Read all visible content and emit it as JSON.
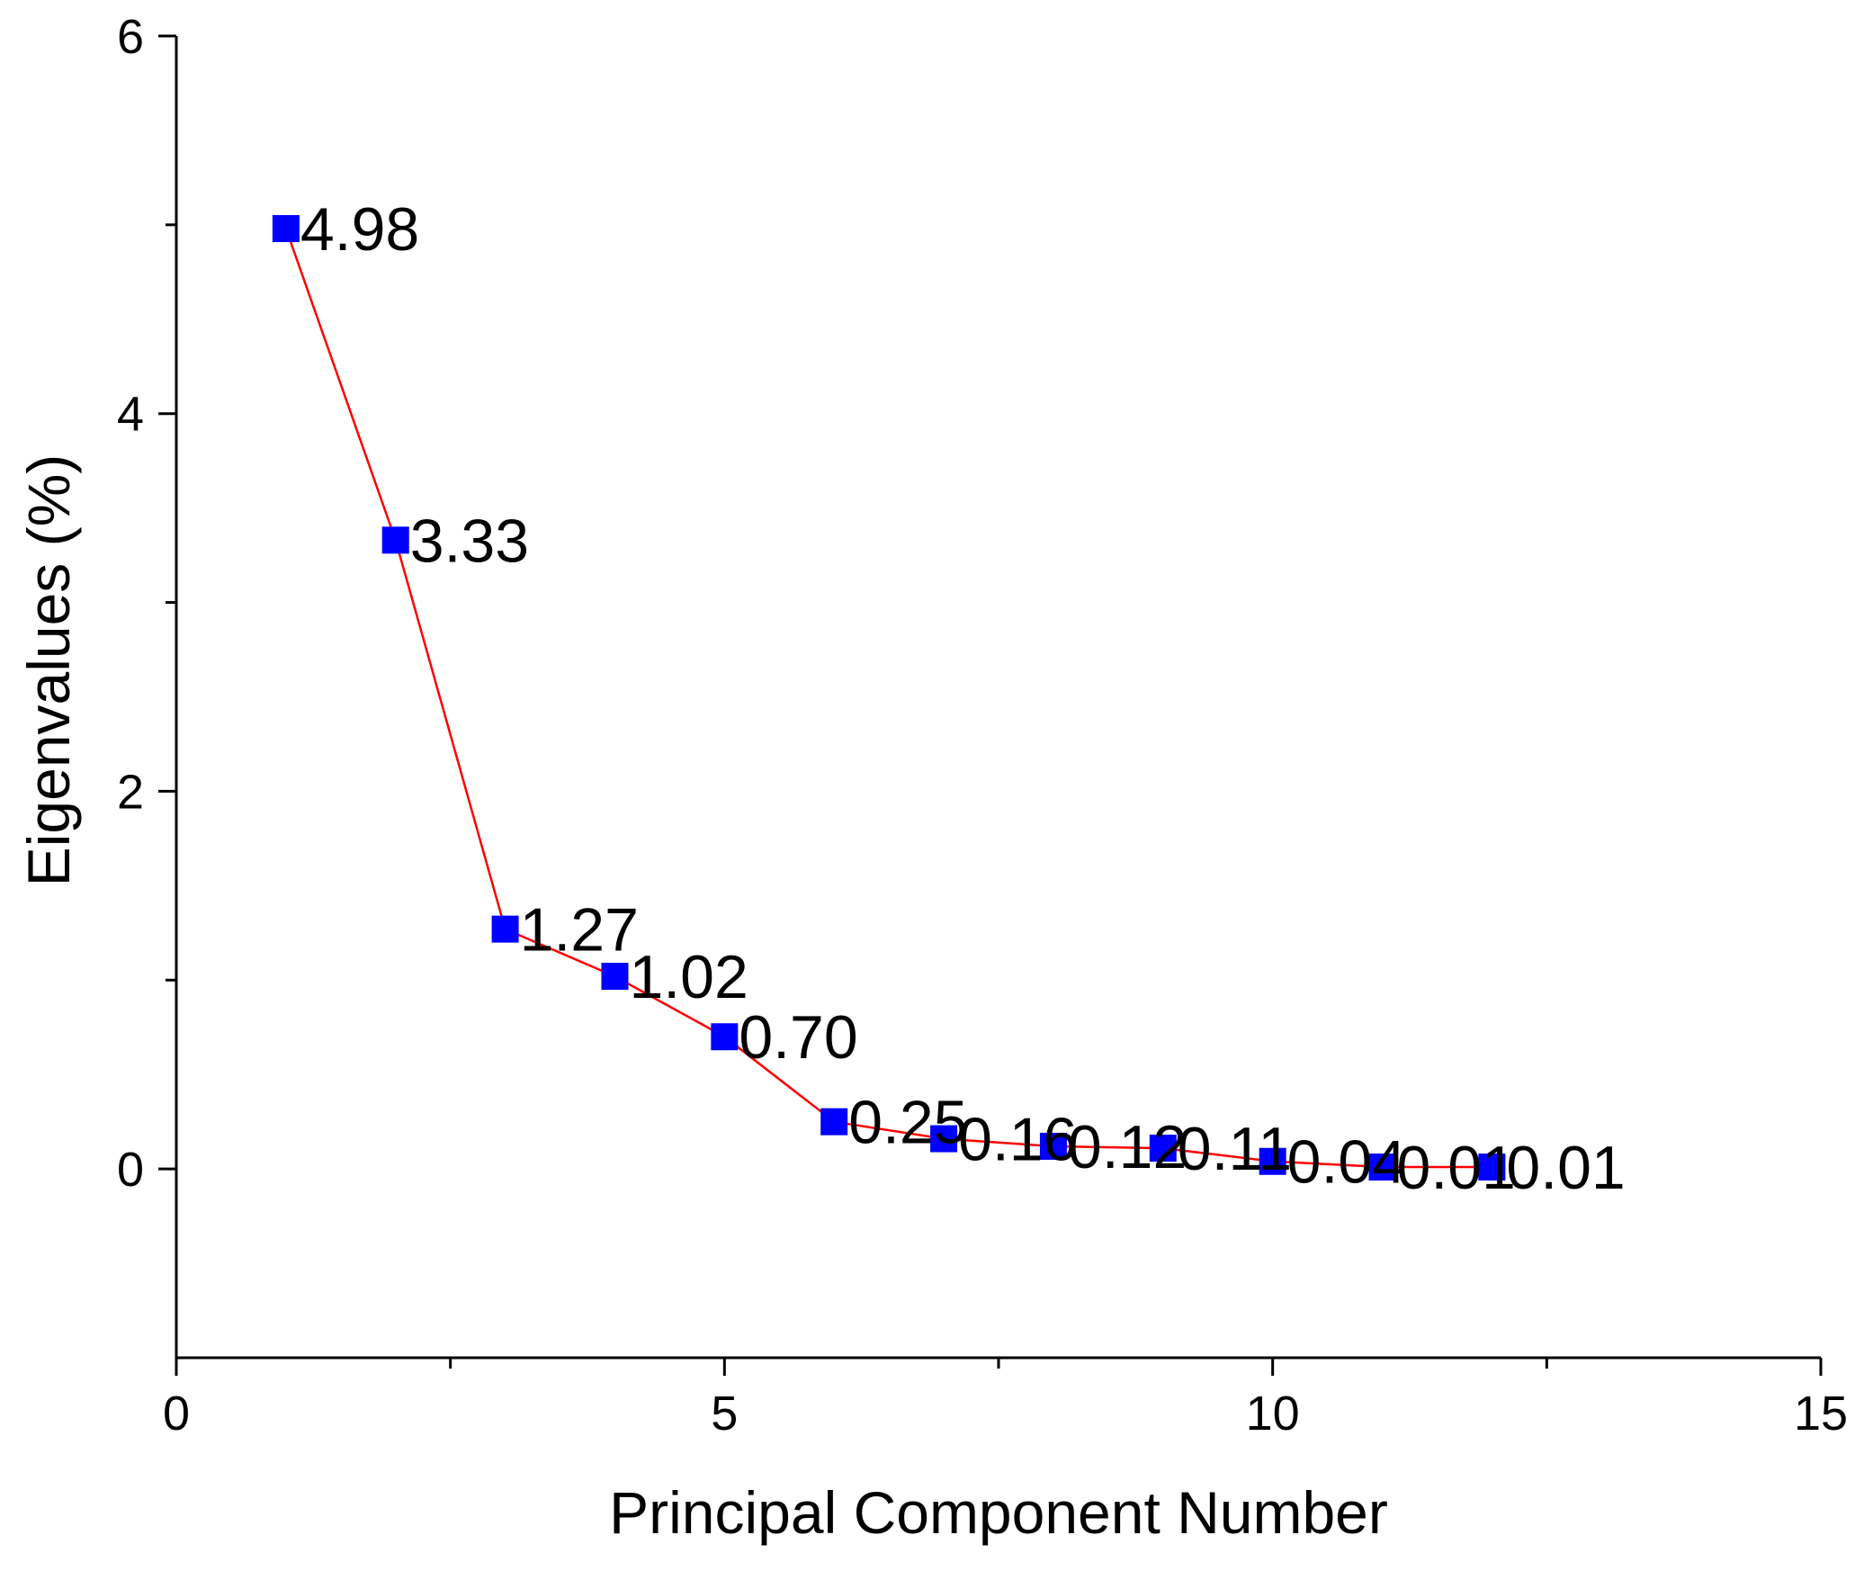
{
  "chart_data": {
    "type": "line",
    "title": "",
    "xlabel": "Principal Component Number",
    "ylabel": "Eigenvalues (%)",
    "xlim": [
      0,
      15
    ],
    "ylim": [
      -1,
      6
    ],
    "x_ticks": [
      0,
      5,
      10,
      15
    ],
    "x_tick_labels": [
      "0",
      "5",
      "10",
      "15"
    ],
    "y_ticks": [
      0,
      2,
      4,
      6
    ],
    "y_tick_labels": [
      "0",
      "2",
      "4",
      "6"
    ],
    "grid": false,
    "legend": "none",
    "series": [
      {
        "line_color": "#ff0000",
        "marker_color": "#0000ff",
        "marker": "square",
        "x": [
          1,
          2,
          3,
          4,
          5,
          6,
          7,
          8,
          9,
          10,
          11,
          12
        ],
        "y": [
          4.98,
          3.33,
          1.27,
          1.02,
          0.7,
          0.25,
          0.16,
          0.12,
          0.11,
          0.04,
          0.01,
          0.01
        ],
        "labels": [
          "4.98",
          "3.33",
          "1.27",
          "1.02",
          "0.70",
          "0.25",
          "0.16",
          "0.12",
          "0.11",
          "0.04",
          "0.01",
          "0.01"
        ]
      }
    ]
  }
}
